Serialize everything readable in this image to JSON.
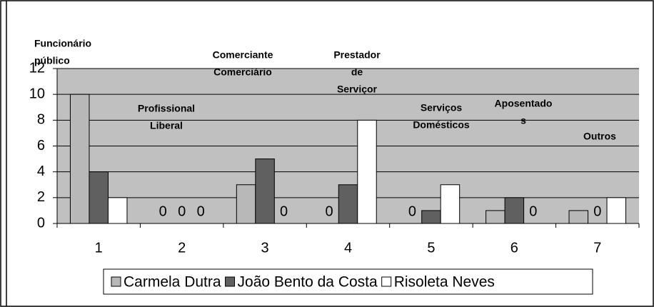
{
  "chart_data": {
    "type": "bar",
    "categories": [
      "1",
      "2",
      "3",
      "4",
      "5",
      "6",
      "7"
    ],
    "series": [
      {
        "name": "Carmela Dutra",
        "color": "#b8b8b8",
        "values": [
          10,
          0,
          3,
          0,
          0,
          1,
          1
        ]
      },
      {
        "name": "João Bento da Costa",
        "color": "#606060",
        "values": [
          4,
          0,
          5,
          3,
          1,
          2,
          0
        ]
      },
      {
        "name": "Risoleta Neves",
        "color": "#ffffff",
        "values": [
          2,
          0,
          0,
          8,
          3,
          0,
          2
        ]
      }
    ],
    "ylim": [
      0,
      12
    ],
    "yticks": [
      0,
      2,
      4,
      6,
      8,
      10,
      12
    ],
    "grid": true,
    "legend": "bottom",
    "annotations": [
      {
        "lines": [
          "Funcionário",
          "público"
        ]
      },
      {
        "lines": [
          "Profissional",
          "Liberal"
        ]
      },
      {
        "lines": [
          "Comerciante",
          "Comerciário"
        ]
      },
      {
        "lines": [
          "Prestador",
          "de",
          "Serviçor"
        ]
      },
      {
        "lines": [
          "Serviços",
          "Domésticos"
        ]
      },
      {
        "lines": [
          "Aposentado",
          "s"
        ]
      },
      {
        "lines": [
          "Outros"
        ]
      }
    ]
  }
}
